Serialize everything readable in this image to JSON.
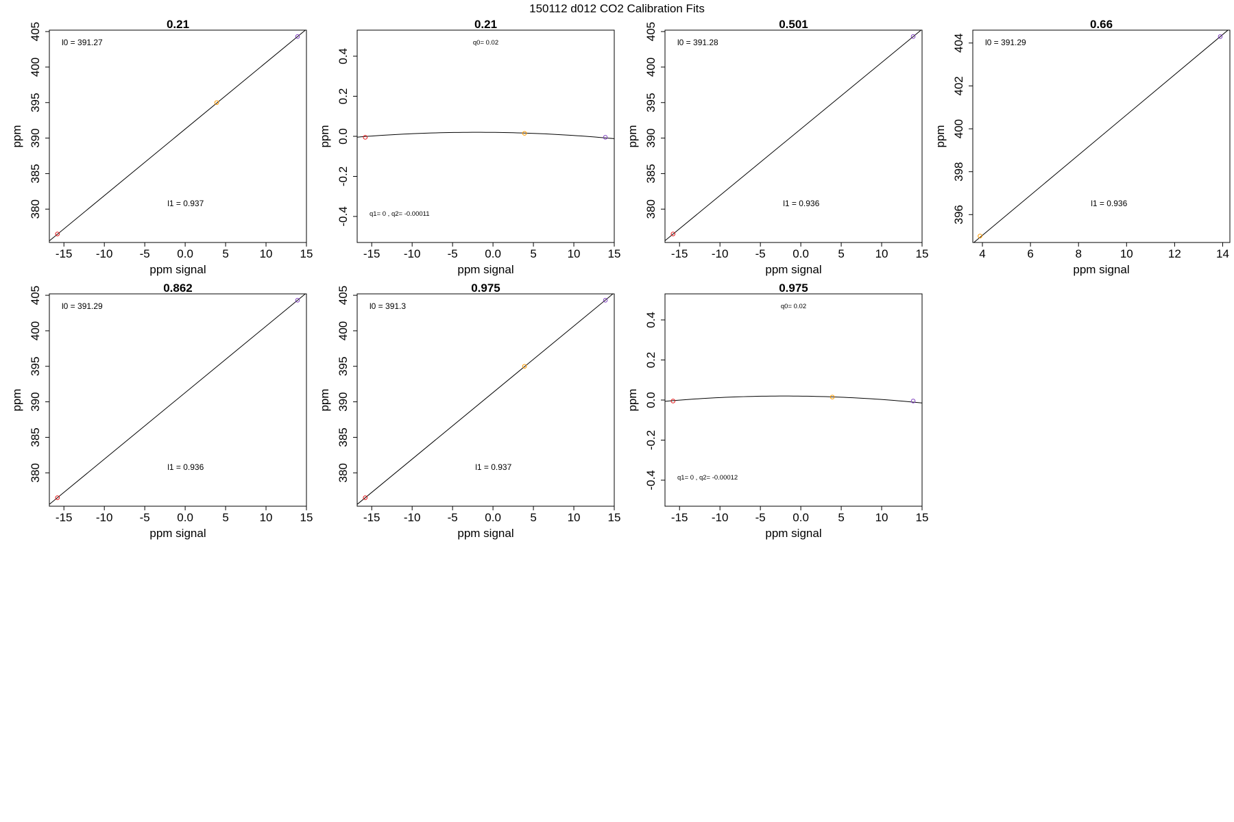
{
  "suptitle": "150112   d012   CO2 Calibration Fits",
  "colors": {
    "low_point": "#e41a1c",
    "mid_point": "#ff9900",
    "high_point": "#7f3fbf",
    "line": "#000000"
  },
  "chart_data": [
    {
      "type": "scatter",
      "fit": "linear",
      "title": "0.21",
      "xlabel": "ppm signal",
      "ylabel": "ppm",
      "xlim": [
        -16.8,
        15.0
      ],
      "ylim": [
        375.3,
        405.2
      ],
      "xticks": [
        -15,
        -10,
        -5,
        0,
        5,
        10,
        15
      ],
      "yticks": [
        380,
        385,
        390,
        395,
        400,
        405
      ],
      "points": [
        {
          "x": -15.8,
          "y": 376.5,
          "color": "#e41a1c"
        },
        {
          "x": 3.9,
          "y": 395.0,
          "color": "#ff9900"
        },
        {
          "x": 13.9,
          "y": 404.3,
          "color": "#7f3fbf"
        }
      ],
      "coef": {
        "l0": 391.27,
        "l1": 0.937
      },
      "annotations": [
        {
          "text": "l0 =  391.27",
          "pos": "top-left"
        },
        {
          "text": "l1 =  0.937",
          "pos": "bottom-center"
        }
      ]
    },
    {
      "type": "scatter",
      "fit": "quadratic",
      "title": "0.21",
      "xlabel": "ppm signal",
      "ylabel": "ppm",
      "xlim": [
        -16.8,
        15.0
      ],
      "ylim": [
        -0.53,
        0.53
      ],
      "xticks": [
        -15,
        -10,
        -5,
        0,
        5,
        10,
        15
      ],
      "yticks": [
        -0.4,
        -0.2,
        0.0,
        0.2,
        0.4
      ],
      "points": [
        {
          "x": -15.8,
          "y": -0.005,
          "color": "#e41a1c"
        },
        {
          "x": 3.9,
          "y": 0.015,
          "color": "#ff9900"
        },
        {
          "x": 13.9,
          "y": -0.005,
          "color": "#7f3fbf"
        }
      ],
      "coef": {
        "q0": 0.02,
        "q1": 0,
        "q2": -0.00011
      },
      "annotations": [
        {
          "text": "q0= 0.02",
          "pos": "top-center"
        },
        {
          "text": "q1= 0 ,  q2= -0.00011",
          "pos": "bottom-left"
        }
      ]
    },
    {
      "type": "scatter",
      "fit": "linear",
      "title": "0.501",
      "xlabel": "ppm signal",
      "ylabel": "ppm",
      "xlim": [
        -16.8,
        15.0
      ],
      "ylim": [
        375.3,
        405.2
      ],
      "xticks": [
        -15,
        -10,
        -5,
        0,
        5,
        10,
        15
      ],
      "yticks": [
        380,
        385,
        390,
        395,
        400,
        405
      ],
      "points": [
        {
          "x": -15.8,
          "y": 376.5,
          "color": "#e41a1c"
        },
        {
          "x": 13.9,
          "y": 404.3,
          "color": "#7f3fbf"
        }
      ],
      "coef": {
        "l0": 391.28,
        "l1": 0.936
      },
      "annotations": [
        {
          "text": "l0 =  391.28",
          "pos": "top-left"
        },
        {
          "text": "l1 =  0.936",
          "pos": "bottom-center"
        }
      ]
    },
    {
      "type": "scatter",
      "fit": "linear",
      "title": "0.66",
      "xlabel": "ppm signal",
      "ylabel": "ppm",
      "xlim": [
        3.6,
        14.3
      ],
      "ylim": [
        394.7,
        404.6
      ],
      "xticks": [
        4,
        6,
        8,
        10,
        12,
        14
      ],
      "yticks": [
        396,
        398,
        400,
        402,
        404
      ],
      "points": [
        {
          "x": 3.9,
          "y": 395.0,
          "color": "#ff9900"
        },
        {
          "x": 13.9,
          "y": 404.3,
          "color": "#7f3fbf"
        }
      ],
      "coef": {
        "l0": 391.29,
        "l1": 0.936
      },
      "annotations": [
        {
          "text": "l0 =  391.29",
          "pos": "top-left"
        },
        {
          "text": "l1 =  0.936",
          "pos": "bottom-center"
        }
      ]
    },
    {
      "type": "scatter",
      "fit": "linear",
      "title": "0.862",
      "xlabel": "ppm signal",
      "ylabel": "ppm",
      "xlim": [
        -16.8,
        15.0
      ],
      "ylim": [
        375.3,
        405.2
      ],
      "xticks": [
        -15,
        -10,
        -5,
        0,
        5,
        10,
        15
      ],
      "yticks": [
        380,
        385,
        390,
        395,
        400,
        405
      ],
      "points": [
        {
          "x": -15.8,
          "y": 376.5,
          "color": "#e41a1c"
        },
        {
          "x": 13.9,
          "y": 404.3,
          "color": "#7f3fbf"
        }
      ],
      "coef": {
        "l0": 391.29,
        "l1": 0.936
      },
      "annotations": [
        {
          "text": "l0 =  391.29",
          "pos": "top-left"
        },
        {
          "text": "l1 =  0.936",
          "pos": "bottom-center"
        }
      ]
    },
    {
      "type": "scatter",
      "fit": "linear",
      "title": "0.975",
      "xlabel": "ppm signal",
      "ylabel": "ppm",
      "xlim": [
        -16.8,
        15.0
      ],
      "ylim": [
        375.3,
        405.2
      ],
      "xticks": [
        -15,
        -10,
        -5,
        0,
        5,
        10,
        15
      ],
      "yticks": [
        380,
        385,
        390,
        395,
        400,
        405
      ],
      "points": [
        {
          "x": -15.8,
          "y": 376.5,
          "color": "#e41a1c"
        },
        {
          "x": 3.9,
          "y": 395.0,
          "color": "#ff9900"
        },
        {
          "x": 13.9,
          "y": 404.3,
          "color": "#7f3fbf"
        }
      ],
      "coef": {
        "l0": 391.3,
        "l1": 0.937
      },
      "annotations": [
        {
          "text": "l0 =  391.3",
          "pos": "top-left"
        },
        {
          "text": "l1 =  0.937",
          "pos": "bottom-center"
        }
      ]
    },
    {
      "type": "scatter",
      "fit": "quadratic",
      "title": "0.975",
      "xlabel": "ppm signal",
      "ylabel": "ppm",
      "xlim": [
        -16.8,
        15.0
      ],
      "ylim": [
        -0.53,
        0.53
      ],
      "xticks": [
        -15,
        -10,
        -5,
        0,
        5,
        10,
        15
      ],
      "yticks": [
        -0.4,
        -0.2,
        0.0,
        0.2,
        0.4
      ],
      "points": [
        {
          "x": -15.8,
          "y": -0.005,
          "color": "#e41a1c"
        },
        {
          "x": 3.9,
          "y": 0.015,
          "color": "#ff9900"
        },
        {
          "x": 13.9,
          "y": -0.005,
          "color": "#7f3fbf"
        }
      ],
      "coef": {
        "q0": 0.02,
        "q1": 0,
        "q2": -0.00012
      },
      "annotations": [
        {
          "text": "q0= 0.02",
          "pos": "top-center"
        },
        {
          "text": "q1= 0 ,  q2= -0.00012",
          "pos": "bottom-left"
        }
      ]
    }
  ]
}
